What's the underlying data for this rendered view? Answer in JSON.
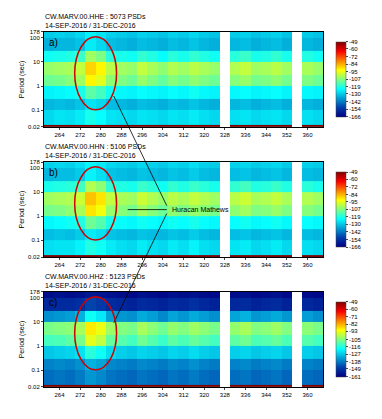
{
  "chart_data": [
    {
      "type": "heatmap",
      "panel": "a)",
      "title": "CW.MARV.00.HHE : 5073 PSDs",
      "subtitle": "14-SEP-2016 / 31-DEC-2016",
      "y_label": "Period (sec)",
      "log": "y",
      "color": "Jet",
      "xlim": [
        258,
        366
      ],
      "xticks": [
        264,
        272,
        280,
        288,
        296,
        304,
        312,
        320,
        328,
        336,
        344,
        352,
        360
      ],
      "ylim": [
        0.02,
        178
      ],
      "yticks": [
        0.02,
        0.1,
        1,
        10,
        100,
        178
      ],
      "x": [
        258,
        262,
        266,
        270,
        274,
        278,
        282,
        286,
        290,
        294,
        298,
        302,
        306,
        310,
        314,
        318,
        322,
        326,
        330,
        334,
        338,
        342,
        346,
        350,
        354,
        358,
        362,
        366
      ],
      "y": [
        0.02,
        0.025,
        0.1,
        0.3,
        1,
        3,
        10,
        30,
        100,
        178
      ],
      "cells": [
        [
          -49,
          -49,
          -49,
          -49,
          -49,
          -49,
          -49,
          -49,
          -49,
          -49,
          -49,
          -49,
          -49,
          -49,
          -49,
          -49,
          -49,
          null,
          -49,
          -49,
          -49,
          -49,
          -49,
          -49,
          null,
          -49,
          -49
        ],
        [
          -128,
          -126,
          -127,
          -125,
          -120,
          -122,
          -126,
          -127,
          -128,
          -126,
          -127,
          -128,
          -126,
          -127,
          -125,
          -127,
          -128,
          null,
          -127,
          -126,
          -128,
          -127,
          -126,
          -128,
          null,
          -127,
          -128
        ],
        [
          -133,
          -132,
          -133,
          -131,
          -126,
          -128,
          -132,
          -133,
          -134,
          -132,
          -133,
          -134,
          -132,
          -133,
          -131,
          -133,
          -134,
          null,
          -133,
          -132,
          -134,
          -133,
          -132,
          -134,
          null,
          -133,
          -134
        ],
        [
          -124,
          -123,
          -122,
          -120,
          -112,
          -115,
          -121,
          -123,
          -124,
          -122,
          -123,
          -124,
          -122,
          -123,
          -121,
          -123,
          -124,
          null,
          -123,
          -122,
          -124,
          -123,
          -122,
          -124,
          null,
          -123,
          -124
        ],
        [
          -110,
          -109,
          -107,
          -104,
          -92,
          -96,
          -106,
          -108,
          -110,
          -105,
          -108,
          -111,
          -107,
          -109,
          -106,
          -108,
          -110,
          null,
          -107,
          -105,
          -109,
          -108,
          -106,
          -109,
          null,
          -108,
          -110
        ],
        [
          -105,
          -104,
          -103,
          -100,
          -88,
          -92,
          -101,
          -104,
          -105,
          -100,
          -103,
          -106,
          -102,
          -104,
          -101,
          -103,
          -105,
          null,
          -102,
          -100,
          -104,
          -103,
          -101,
          -104,
          null,
          -103,
          -105
        ],
        [
          -121,
          -120,
          -119,
          -116,
          -104,
          -108,
          -118,
          -120,
          -121,
          -117,
          -119,
          -122,
          -118,
          -120,
          -117,
          -119,
          -121,
          null,
          -118,
          -116,
          -120,
          -119,
          -117,
          -120,
          null,
          -119,
          -121
        ],
        [
          -134,
          -133,
          -133,
          -131,
          -125,
          -128,
          -132,
          -133,
          -134,
          -132,
          -133,
          -134,
          -132,
          -133,
          -131,
          -133,
          -134,
          null,
          -133,
          -132,
          -134,
          -133,
          -132,
          -134,
          null,
          -133,
          -134
        ],
        [
          -130,
          -129,
          -130,
          -128,
          -124,
          -126,
          -129,
          -130,
          -131,
          -129,
          -130,
          -131,
          -129,
          -130,
          -128,
          -130,
          -131,
          null,
          -130,
          -129,
          -131,
          -130,
          -129,
          -131,
          null,
          -130,
          -131
        ]
      ],
      "colorbar_range": [
        -166,
        -49
      ],
      "colorbar_ticks": [
        -49,
        -60,
        -72,
        -84,
        -95,
        -107,
        -119,
        -130,
        -142,
        -154,
        -166
      ]
    },
    {
      "type": "heatmap",
      "panel": "b)",
      "title": "CW.MARV.00.HHN : 5106 PSDs",
      "subtitle": "14-SEP-2016 / 31-DEC-2016",
      "y_label": "Period (sec)",
      "log": "y",
      "color": "Jet",
      "annotations": [
        "Huracan Mathews"
      ],
      "xlim": [
        258,
        366
      ],
      "xticks": [
        264,
        272,
        280,
        288,
        296,
        304,
        312,
        320,
        328,
        336,
        344,
        352,
        360
      ],
      "ylim": [
        0.02,
        178
      ],
      "yticks": [
        0.02,
        0.1,
        1,
        10,
        100,
        178
      ],
      "x": [
        258,
        262,
        266,
        270,
        274,
        278,
        282,
        286,
        290,
        294,
        298,
        302,
        306,
        310,
        314,
        318,
        322,
        326,
        330,
        334,
        338,
        342,
        346,
        350,
        354,
        358,
        362,
        366
      ],
      "y": [
        0.02,
        0.025,
        0.1,
        0.3,
        1,
        3,
        10,
        30,
        100,
        178
      ],
      "cells": [
        [
          -49,
          -49,
          -49,
          -49,
          -49,
          -49,
          -49,
          -49,
          -49,
          -49,
          -49,
          -49,
          -49,
          -49,
          -49,
          -49,
          -49,
          null,
          -49,
          -49,
          -49,
          -49,
          -49,
          -49,
          null,
          -49,
          -49
        ],
        [
          -127,
          -126,
          -126,
          -124,
          -119,
          -121,
          -125,
          -127,
          -128,
          -125,
          -127,
          -128,
          -125,
          -127,
          -124,
          -127,
          -128,
          null,
          -126,
          -125,
          -128,
          -127,
          -125,
          -128,
          null,
          -127,
          -128
        ],
        [
          -132,
          -131,
          -132,
          -130,
          -125,
          -127,
          -131,
          -132,
          -133,
          -131,
          -132,
          -133,
          -131,
          -132,
          -130,
          -132,
          -133,
          null,
          -132,
          -131,
          -133,
          -132,
          -131,
          -133,
          null,
          -132,
          -133
        ],
        [
          -123,
          -122,
          -121,
          -119,
          -110,
          -113,
          -120,
          -122,
          -123,
          -121,
          -122,
          -123,
          -121,
          -122,
          -120,
          -122,
          -123,
          null,
          -122,
          -121,
          -123,
          -122,
          -121,
          -123,
          null,
          -122,
          -123
        ],
        [
          -109,
          -108,
          -106,
          -103,
          -90,
          -94,
          -105,
          -107,
          -109,
          -104,
          -107,
          -110,
          -106,
          -108,
          -105,
          -107,
          -109,
          null,
          -106,
          -104,
          -108,
          -107,
          -105,
          -108,
          null,
          -107,
          -109
        ],
        [
          -104,
          -103,
          -102,
          -99,
          -86,
          -90,
          -100,
          -103,
          -104,
          -99,
          -102,
          -105,
          -101,
          -103,
          -100,
          -102,
          -104,
          null,
          -101,
          -99,
          -103,
          -102,
          -100,
          -103,
          null,
          -102,
          -104
        ],
        [
          -120,
          -119,
          -118,
          -115,
          -102,
          -106,
          -117,
          -119,
          -120,
          -116,
          -118,
          -121,
          -117,
          -119,
          -116,
          -118,
          -120,
          null,
          -117,
          -115,
          -119,
          -118,
          -116,
          -119,
          null,
          -118,
          -120
        ],
        [
          -133,
          -132,
          -132,
          -130,
          -124,
          -127,
          -131,
          -132,
          -133,
          -131,
          -132,
          -133,
          -131,
          -132,
          -130,
          -132,
          -133,
          null,
          -132,
          -131,
          -133,
          -132,
          -131,
          -133,
          null,
          -132,
          -133
        ],
        [
          -129,
          -128,
          -129,
          -127,
          -123,
          -125,
          -128,
          -129,
          -130,
          -128,
          -129,
          -130,
          -128,
          -129,
          -127,
          -129,
          -130,
          null,
          -129,
          -128,
          -130,
          -129,
          -128,
          -130,
          null,
          -129,
          -130
        ]
      ],
      "colorbar_range": [
        -166,
        -49
      ],
      "colorbar_ticks": [
        -49,
        -60,
        -72,
        -84,
        -95,
        -107,
        -119,
        -130,
        -142,
        -154,
        -166
      ]
    },
    {
      "type": "heatmap",
      "panel": "c)",
      "title": "CW.MARV.00.HHZ : 5123 PSDs",
      "subtitle": "14-SEP-2016 / 31-DEC-2016",
      "y_label": "Period (sec)",
      "log": "y",
      "color": "Jet",
      "xlim": [
        258,
        366
      ],
      "xticks": [
        264,
        272,
        280,
        288,
        296,
        304,
        312,
        320,
        328,
        336,
        344,
        352,
        360
      ],
      "ylim": [
        0.02,
        178
      ],
      "yticks": [
        0.02,
        0.1,
        1,
        10,
        100,
        178
      ],
      "x": [
        258,
        262,
        266,
        270,
        274,
        278,
        282,
        286,
        290,
        294,
        298,
        302,
        306,
        310,
        314,
        318,
        322,
        326,
        330,
        334,
        338,
        342,
        346,
        350,
        354,
        358,
        362,
        366
      ],
      "y": [
        0.02,
        0.025,
        0.1,
        0.3,
        1,
        3,
        10,
        30,
        100,
        178
      ],
      "cells": [
        [
          -49,
          -49,
          -49,
          -49,
          -49,
          -49,
          -49,
          -49,
          -49,
          -49,
          -49,
          -49,
          -49,
          -49,
          -49,
          -49,
          -49,
          null,
          -49,
          -49,
          -49,
          -49,
          -49,
          -49,
          null,
          -49,
          -49
        ],
        [
          -140,
          -139,
          -140,
          -138,
          -134,
          -136,
          -139,
          -140,
          -141,
          -139,
          -140,
          -141,
          -139,
          -140,
          -138,
          -140,
          -141,
          null,
          -140,
          -139,
          -141,
          -140,
          -139,
          -141,
          null,
          -140,
          -141
        ],
        [
          -137,
          -136,
          -137,
          -135,
          -130,
          -132,
          -136,
          -137,
          -138,
          -136,
          -137,
          -138,
          -136,
          -137,
          -135,
          -137,
          -138,
          null,
          -137,
          -136,
          -138,
          -137,
          -136,
          -138,
          null,
          -137,
          -138
        ],
        [
          -127,
          -126,
          -125,
          -123,
          -115,
          -118,
          -124,
          -126,
          -127,
          -125,
          -126,
          -127,
          -125,
          -126,
          -124,
          -126,
          -127,
          null,
          -126,
          -125,
          -127,
          -126,
          -125,
          -127,
          null,
          -126,
          -127
        ],
        [
          -112,
          -111,
          -109,
          -106,
          -94,
          -98,
          -108,
          -110,
          -112,
          -107,
          -110,
          -113,
          -109,
          -111,
          -108,
          -110,
          -112,
          null,
          -109,
          -107,
          -111,
          -110,
          -108,
          -111,
          null,
          -110,
          -112
        ],
        [
          -106,
          -105,
          -104,
          -101,
          -89,
          -93,
          -102,
          -105,
          -106,
          -101,
          -104,
          -107,
          -103,
          -105,
          -102,
          -104,
          -106,
          null,
          -103,
          -101,
          -105,
          -104,
          -102,
          -105,
          null,
          -104,
          -106
        ],
        [
          -135,
          -134,
          -133,
          -130,
          -118,
          -122,
          -132,
          -134,
          -135,
          -131,
          -133,
          -136,
          -132,
          -134,
          -131,
          -133,
          -135,
          null,
          -132,
          -130,
          -134,
          -133,
          -131,
          -134,
          null,
          -133,
          -135
        ],
        [
          -152,
          -151,
          -151,
          -150,
          -146,
          -148,
          -151,
          -152,
          -153,
          -151,
          -152,
          -153,
          -151,
          -152,
          -150,
          -152,
          -153,
          null,
          -152,
          -151,
          -153,
          -152,
          -151,
          -153,
          null,
          -152,
          -153
        ],
        [
          -158,
          -157,
          -158,
          -157,
          -155,
          -156,
          -157,
          -158,
          -159,
          -157,
          -158,
          -159,
          -157,
          -158,
          -157,
          -158,
          -159,
          null,
          -158,
          -157,
          -159,
          -158,
          -157,
          -159,
          null,
          -158,
          -159
        ]
      ],
      "colorbar_range": [
        -161,
        -49
      ],
      "colorbar_ticks": [
        -49,
        -60,
        -71,
        -82,
        -93,
        -105,
        -116,
        -127,
        -138,
        -149,
        -161
      ]
    }
  ]
}
